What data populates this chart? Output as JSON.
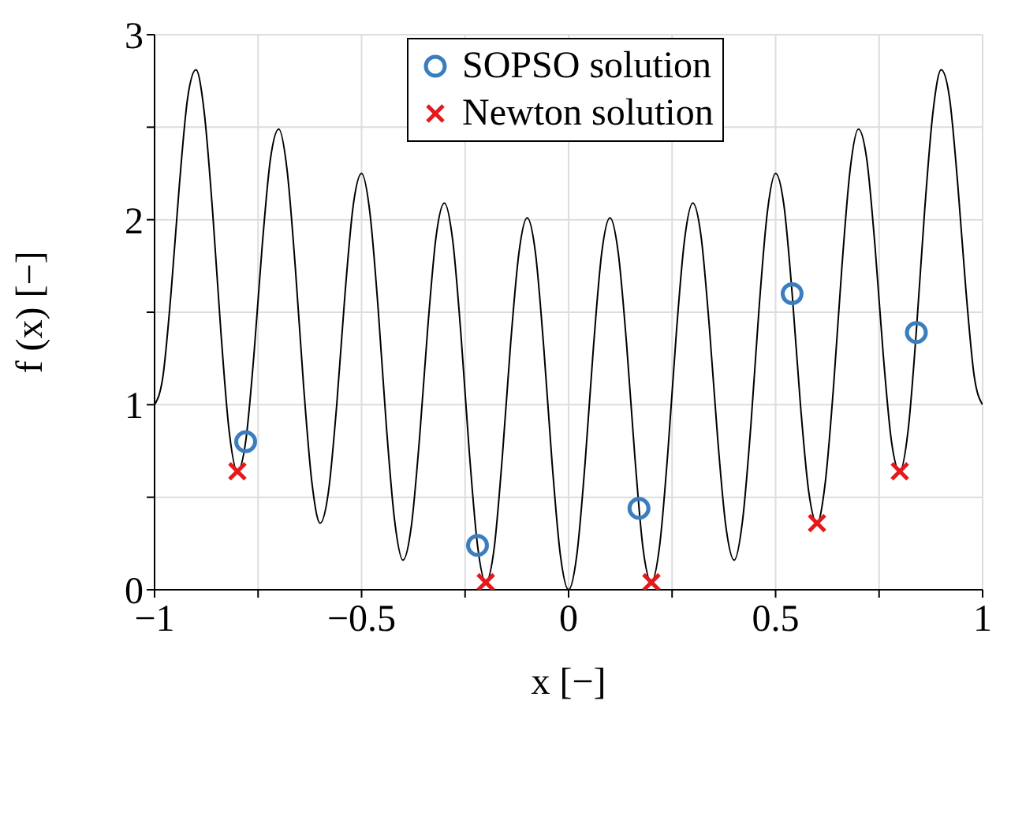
{
  "chart_data": {
    "type": "line",
    "xlabel": "x [−]",
    "ylabel": "f (x) [−]",
    "xlim": [
      -1,
      1
    ],
    "xticks": [
      {
        "value": -1,
        "label": "−1"
      },
      {
        "value": -0.75,
        "label": null
      },
      {
        "value": -0.5,
        "label": "−0.5"
      },
      {
        "value": -0.25,
        "label": null
      },
      0,
      {
        "value": 0.25,
        "label": null
      },
      0.5,
      {
        "value": 0.75,
        "label": null
      },
      1
    ],
    "ylim": [
      0,
      3
    ],
    "yticks": [
      0,
      {
        "value": 0.5,
        "label": null
      },
      1,
      {
        "value": 1.5,
        "label": null
      },
      2,
      {
        "value": 2.5,
        "label": null
      },
      3
    ],
    "grid": true,
    "legend": "top",
    "series": [
      {
        "color": "#000000",
        "marker": "none",
        "line_style": "solid",
        "x": [
          -1,
          -0.98,
          -0.96,
          -0.94,
          -0.92,
          -0.9,
          -0.88,
          -0.86,
          -0.84,
          -0.82,
          -0.8,
          -0.78,
          -0.76,
          -0.74,
          -0.72,
          -0.7,
          -0.68,
          -0.66,
          -0.64,
          -0.62,
          -0.6,
          -0.58,
          -0.56,
          -0.54,
          -0.52,
          -0.5,
          -0.48,
          -0.46,
          -0.44,
          -0.42,
          -0.4,
          -0.38,
          -0.36,
          -0.34,
          -0.32,
          -0.3,
          -0.28,
          -0.26,
          -0.24,
          -0.22,
          -0.2,
          -0.18,
          -0.16,
          -0.14,
          -0.12,
          -0.1,
          -0.08,
          -0.06,
          -0.04,
          -0.02,
          0,
          0.02,
          0.04,
          0.06,
          0.08,
          0.1,
          0.12,
          0.14,
          0.16,
          0.18,
          0.2,
          0.22,
          0.24,
          0.26,
          0.28,
          0.3,
          0.32,
          0.34,
          0.36,
          0.38,
          0.4,
          0.42,
          0.44,
          0.46,
          0.48,
          0.5,
          0.52,
          0.54,
          0.56,
          0.58,
          0.6,
          0.62,
          0.64,
          0.66,
          0.68,
          0.7,
          0.72,
          0.74,
          0.76,
          0.78,
          0.8,
          0.82,
          0.84,
          0.86,
          0.88,
          0.9,
          0.92,
          0.94,
          0.96,
          0.98,
          1
        ],
        "values": [
          1.0,
          1.15,
          1.61,
          2.19,
          2.66,
          2.81,
          2.58,
          2.05,
          1.4,
          0.86,
          0.64,
          0.8,
          1.27,
          1.86,
          2.33,
          2.49,
          2.27,
          1.74,
          1.1,
          0.58,
          0.36,
          0.53,
          1.0,
          1.6,
          2.08,
          2.25,
          2.04,
          1.52,
          0.88,
          0.37,
          0.16,
          0.34,
          0.82,
          1.42,
          1.91,
          2.09,
          1.89,
          1.38,
          0.75,
          0.24,
          0.04,
          0.22,
          0.72,
          1.33,
          1.82,
          2.01,
          1.82,
          1.31,
          0.69,
          0.19,
          0,
          0.19,
          0.69,
          1.31,
          1.82,
          2.01,
          1.82,
          1.33,
          0.72,
          0.22,
          0.04,
          0.24,
          0.75,
          1.38,
          1.89,
          2.09,
          1.91,
          1.42,
          0.82,
          0.34,
          0.16,
          0.37,
          0.88,
          1.52,
          2.04,
          2.25,
          2.08,
          1.6,
          1.0,
          0.53,
          0.36,
          0.58,
          1.1,
          1.74,
          2.27,
          2.49,
          2.33,
          1.86,
          1.27,
          0.8,
          0.64,
          0.86,
          1.4,
          2.05,
          2.58,
          2.81,
          2.66,
          2.19,
          1.61,
          1.15,
          1.0
        ]
      },
      {
        "type": "scatter",
        "name": "SOPSO solution",
        "color": "#3a7ebf",
        "marker": "circle",
        "x": [
          -0.78,
          -0.22,
          0.17,
          0.54,
          0.84
        ],
        "values": [
          0.8,
          0.24,
          0.44,
          1.6,
          1.39
        ]
      },
      {
        "type": "scatter",
        "name": "Newton solution",
        "color": "#e31a1c",
        "marker": "cross",
        "x": [
          -0.8,
          -0.2,
          0.2,
          0.6,
          0.8
        ],
        "values": [
          0.64,
          0.04,
          0.04,
          0.36,
          0.64
        ]
      }
    ]
  }
}
